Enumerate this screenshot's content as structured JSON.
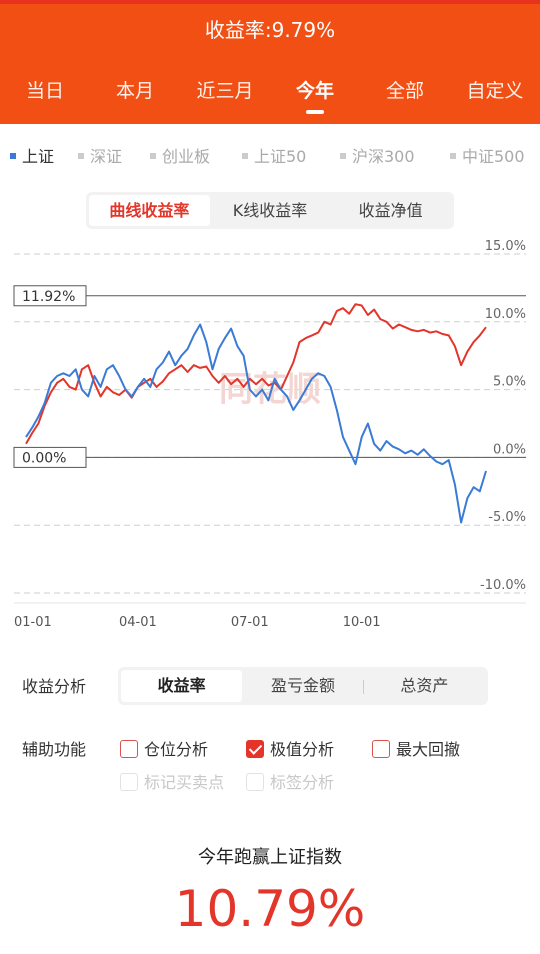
{
  "header": {
    "title": "收益率:9.79%",
    "bg_color": "#f24f14",
    "tabs": [
      "当日",
      "本月",
      "近三月",
      "今年",
      "全部",
      "自定义"
    ],
    "active_tab": "今年"
  },
  "indices": [
    "上证",
    "深证",
    "创业板",
    "上证50",
    "沪深300",
    "中证500"
  ],
  "active_index": "上证",
  "chart_tabs": [
    "曲线收益率",
    "K线收益率",
    "收益净值"
  ],
  "active_chart_tab": "曲线收益率",
  "chart_data": {
    "type": "line",
    "ylim": [
      -10,
      15
    ],
    "y_ticks": [
      "15.0%",
      "10.0%",
      "5.0%",
      "0.0%",
      "-5.0%",
      "-10.0%"
    ],
    "x_ticks": [
      "01-01",
      "04-01",
      "07-01",
      "10-01"
    ],
    "max_marker": "11.92%",
    "zero_marker": "0.00%",
    "watermark": "同花顺",
    "series": [
      {
        "color": "#e3352a",
        "points": [
          [
            0,
            1.0
          ],
          [
            0.5,
            1.8
          ],
          [
            1,
            2.5
          ],
          [
            1.5,
            3.8
          ],
          [
            2,
            4.8
          ],
          [
            2.5,
            5.5
          ],
          [
            3,
            5.8
          ],
          [
            3.5,
            5.2
          ],
          [
            4,
            5.0
          ],
          [
            4.5,
            6.5
          ],
          [
            5,
            6.8
          ],
          [
            5.5,
            5.5
          ],
          [
            6,
            4.5
          ],
          [
            6.5,
            5.2
          ],
          [
            7,
            4.8
          ],
          [
            7.5,
            4.6
          ],
          [
            8,
            5.0
          ],
          [
            8.5,
            4.4
          ],
          [
            9,
            5.2
          ],
          [
            9.5,
            5.5
          ],
          [
            10,
            5.8
          ],
          [
            10.5,
            5.2
          ],
          [
            11,
            5.6
          ],
          [
            11.5,
            6.2
          ],
          [
            12,
            6.5
          ],
          [
            12.5,
            6.8
          ],
          [
            13,
            6.3
          ],
          [
            13.5,
            6.8
          ],
          [
            14,
            6.6
          ],
          [
            14.5,
            6.7
          ],
          [
            15,
            6.0
          ],
          [
            15.5,
            5.5
          ],
          [
            16,
            6.0
          ],
          [
            16.5,
            5.4
          ],
          [
            17,
            5.8
          ],
          [
            17.5,
            5.2
          ],
          [
            18,
            5.8
          ],
          [
            18.5,
            5.4
          ],
          [
            19,
            5.8
          ],
          [
            19.5,
            5.3
          ],
          [
            20,
            5.5
          ],
          [
            20.5,
            5.0
          ],
          [
            21,
            6.0
          ],
          [
            21.5,
            7.0
          ],
          [
            22,
            8.5
          ],
          [
            22.5,
            8.8
          ],
          [
            23,
            9.0
          ],
          [
            23.5,
            9.2
          ],
          [
            24,
            10.0
          ],
          [
            24.5,
            9.8
          ],
          [
            25,
            10.8
          ],
          [
            25.5,
            11.0
          ],
          [
            26,
            10.6
          ],
          [
            26.5,
            11.3
          ],
          [
            27,
            11.2
          ],
          [
            27.5,
            10.5
          ],
          [
            28,
            10.9
          ],
          [
            28.5,
            10.2
          ],
          [
            29,
            10.0
          ],
          [
            29.5,
            9.5
          ],
          [
            30,
            9.8
          ],
          [
            30.5,
            9.6
          ],
          [
            31,
            9.4
          ],
          [
            31.5,
            9.3
          ],
          [
            32,
            9.4
          ],
          [
            32.5,
            9.2
          ],
          [
            33,
            9.3
          ],
          [
            33.5,
            9.1
          ],
          [
            34,
            9.0
          ],
          [
            34.5,
            8.2
          ],
          [
            35,
            6.8
          ],
          [
            35.5,
            7.8
          ],
          [
            36,
            8.5
          ],
          [
            36.5,
            9.0
          ],
          [
            37,
            9.6
          ]
        ]
      },
      {
        "color": "#3a7bd5",
        "points": [
          [
            0,
            1.5
          ],
          [
            0.5,
            2.2
          ],
          [
            1,
            3.0
          ],
          [
            1.5,
            4.0
          ],
          [
            2,
            5.5
          ],
          [
            2.5,
            6.0
          ],
          [
            3,
            6.2
          ],
          [
            3.5,
            6.0
          ],
          [
            4,
            6.5
          ],
          [
            4.5,
            5.0
          ],
          [
            5,
            4.5
          ],
          [
            5.5,
            6.0
          ],
          [
            6,
            5.2
          ],
          [
            6.5,
            6.5
          ],
          [
            7,
            6.8
          ],
          [
            7.5,
            6.0
          ],
          [
            8,
            5.0
          ],
          [
            8.5,
            4.5
          ],
          [
            9,
            5.2
          ],
          [
            9.5,
            5.8
          ],
          [
            10,
            5.2
          ],
          [
            10.5,
            6.5
          ],
          [
            11,
            7.0
          ],
          [
            11.5,
            7.8
          ],
          [
            12,
            6.8
          ],
          [
            12.5,
            7.5
          ],
          [
            13,
            8.0
          ],
          [
            13.5,
            9.0
          ],
          [
            14,
            9.8
          ],
          [
            14.5,
            8.5
          ],
          [
            15,
            6.5
          ],
          [
            15.5,
            8.0
          ],
          [
            16,
            8.8
          ],
          [
            16.5,
            9.5
          ],
          [
            17,
            8.2
          ],
          [
            17.5,
            7.5
          ],
          [
            18,
            5.0
          ],
          [
            18.5,
            4.5
          ],
          [
            19,
            5.0
          ],
          [
            19.5,
            4.2
          ],
          [
            20,
            5.8
          ],
          [
            20.5,
            5.0
          ],
          [
            21,
            4.5
          ],
          [
            21.5,
            3.5
          ],
          [
            22,
            4.2
          ],
          [
            22.5,
            5.0
          ],
          [
            23,
            5.8
          ],
          [
            23.5,
            6.2
          ],
          [
            24,
            6.0
          ],
          [
            24.5,
            5.2
          ],
          [
            25,
            3.5
          ],
          [
            25.5,
            1.5
          ],
          [
            26,
            0.5
          ],
          [
            26.5,
            -0.5
          ],
          [
            27,
            1.5
          ],
          [
            27.5,
            2.5
          ],
          [
            28,
            1.0
          ],
          [
            28.5,
            0.5
          ],
          [
            29,
            1.2
          ],
          [
            29.5,
            0.8
          ],
          [
            30,
            0.6
          ],
          [
            30.5,
            0.3
          ],
          [
            31,
            0.5
          ],
          [
            31.5,
            0.2
          ],
          [
            32,
            0.6
          ],
          [
            32.5,
            0.1
          ],
          [
            33,
            -0.3
          ],
          [
            33.5,
            -0.5
          ],
          [
            34,
            -0.2
          ],
          [
            34.5,
            -2.0
          ],
          [
            35,
            -4.8
          ],
          [
            35.5,
            -3.0
          ],
          [
            36,
            -2.2
          ],
          [
            36.5,
            -2.5
          ],
          [
            37,
            -1.0
          ]
        ]
      }
    ]
  },
  "analysis": {
    "label": "收益分析",
    "tabs": [
      "收益率",
      "盈亏金额",
      "总资产"
    ],
    "active": "收益率"
  },
  "aux": {
    "label": "辅助功能",
    "options": [
      {
        "label": "仓位分析",
        "checked": false,
        "enabled": true
      },
      {
        "label": "极值分析",
        "checked": true,
        "enabled": true
      },
      {
        "label": "最大回撤",
        "checked": false,
        "enabled": true
      },
      {
        "label": "标记买卖点",
        "checked": false,
        "enabled": false
      },
      {
        "label": "标签分析",
        "checked": false,
        "enabled": false
      }
    ]
  },
  "summary": {
    "label": "今年跑赢上证指数",
    "value": "10.79%"
  }
}
